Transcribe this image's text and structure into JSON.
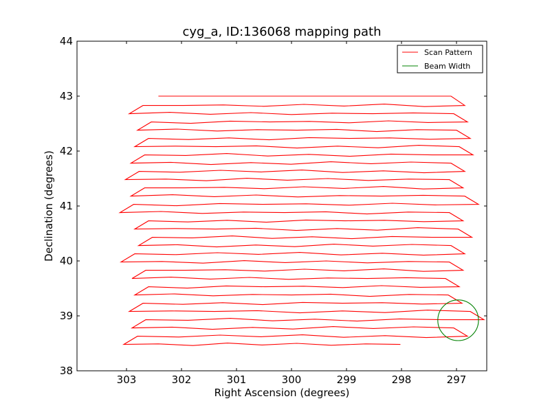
{
  "chart_data": {
    "type": "line",
    "title": "cyg_a, ID:136068 mapping path",
    "xlabel": "Right Ascension (degrees)",
    "ylabel": "Declination (degrees)",
    "xlim": [
      303.9,
      296.45
    ],
    "ylim": [
      38,
      44
    ],
    "x_ticks": [
      303,
      302,
      301,
      300,
      299,
      298,
      297
    ],
    "y_ticks": [
      38,
      39,
      40,
      41,
      42,
      43,
      44
    ],
    "grid": false,
    "legend": {
      "placement": "top-right",
      "entries": [
        {
          "label": "Scan Pattern",
          "color": "#ff0000"
        },
        {
          "label": "Beam Width",
          "color": "#008000"
        }
      ]
    },
    "series": [
      {
        "name": "Scan Pattern",
        "color": "#ff0000",
        "start": {
          "ra": 298.02,
          "dec": 38.48
        },
        "end": {
          "ra": 302.42,
          "dec": 43.0
        },
        "rows_dec": [
          38.48,
          38.63,
          38.78,
          38.93,
          39.08,
          39.23,
          39.38,
          39.53,
          39.68,
          39.83,
          39.98,
          40.13,
          40.28,
          40.43,
          40.58,
          40.73,
          40.88,
          41.03,
          41.18,
          41.33,
          41.48,
          41.63,
          41.78,
          41.93,
          42.08,
          42.23,
          42.38,
          42.53,
          42.68,
          42.83,
          43.0
        ],
        "row_ends_east": [
          303.05,
          302.85,
          302.9,
          302.8,
          302.95,
          302.95,
          302.85,
          302.75,
          302.9,
          302.95,
          303.1,
          303.12,
          302.78,
          302.75,
          302.85,
          302.8,
          303.12,
          303.05,
          302.92,
          302.85,
          303.02,
          302.95,
          302.92
        ],
        "row_ends_west": [
          296.7,
          296.8,
          296.75,
          296.5,
          296.8,
          296.9,
          296.85,
          296.95,
          296.7,
          296.88,
          296.72,
          296.85,
          296.98,
          296.72,
          296.62,
          296.88,
          296.7,
          296.6,
          296.95,
          296.88,
          296.82,
          296.85,
          296.9
        ],
        "meander_hint": [
          0.0,
          0.02,
          -0.03,
          0.04,
          -0.02,
          0.05,
          -0.04,
          0.02,
          -0.05,
          0.03
        ]
      },
      {
        "name": "Beam Width",
        "color": "#008000",
        "center": {
          "ra": 296.97,
          "dec": 38.92
        },
        "radius_deg": 0.37
      }
    ]
  }
}
